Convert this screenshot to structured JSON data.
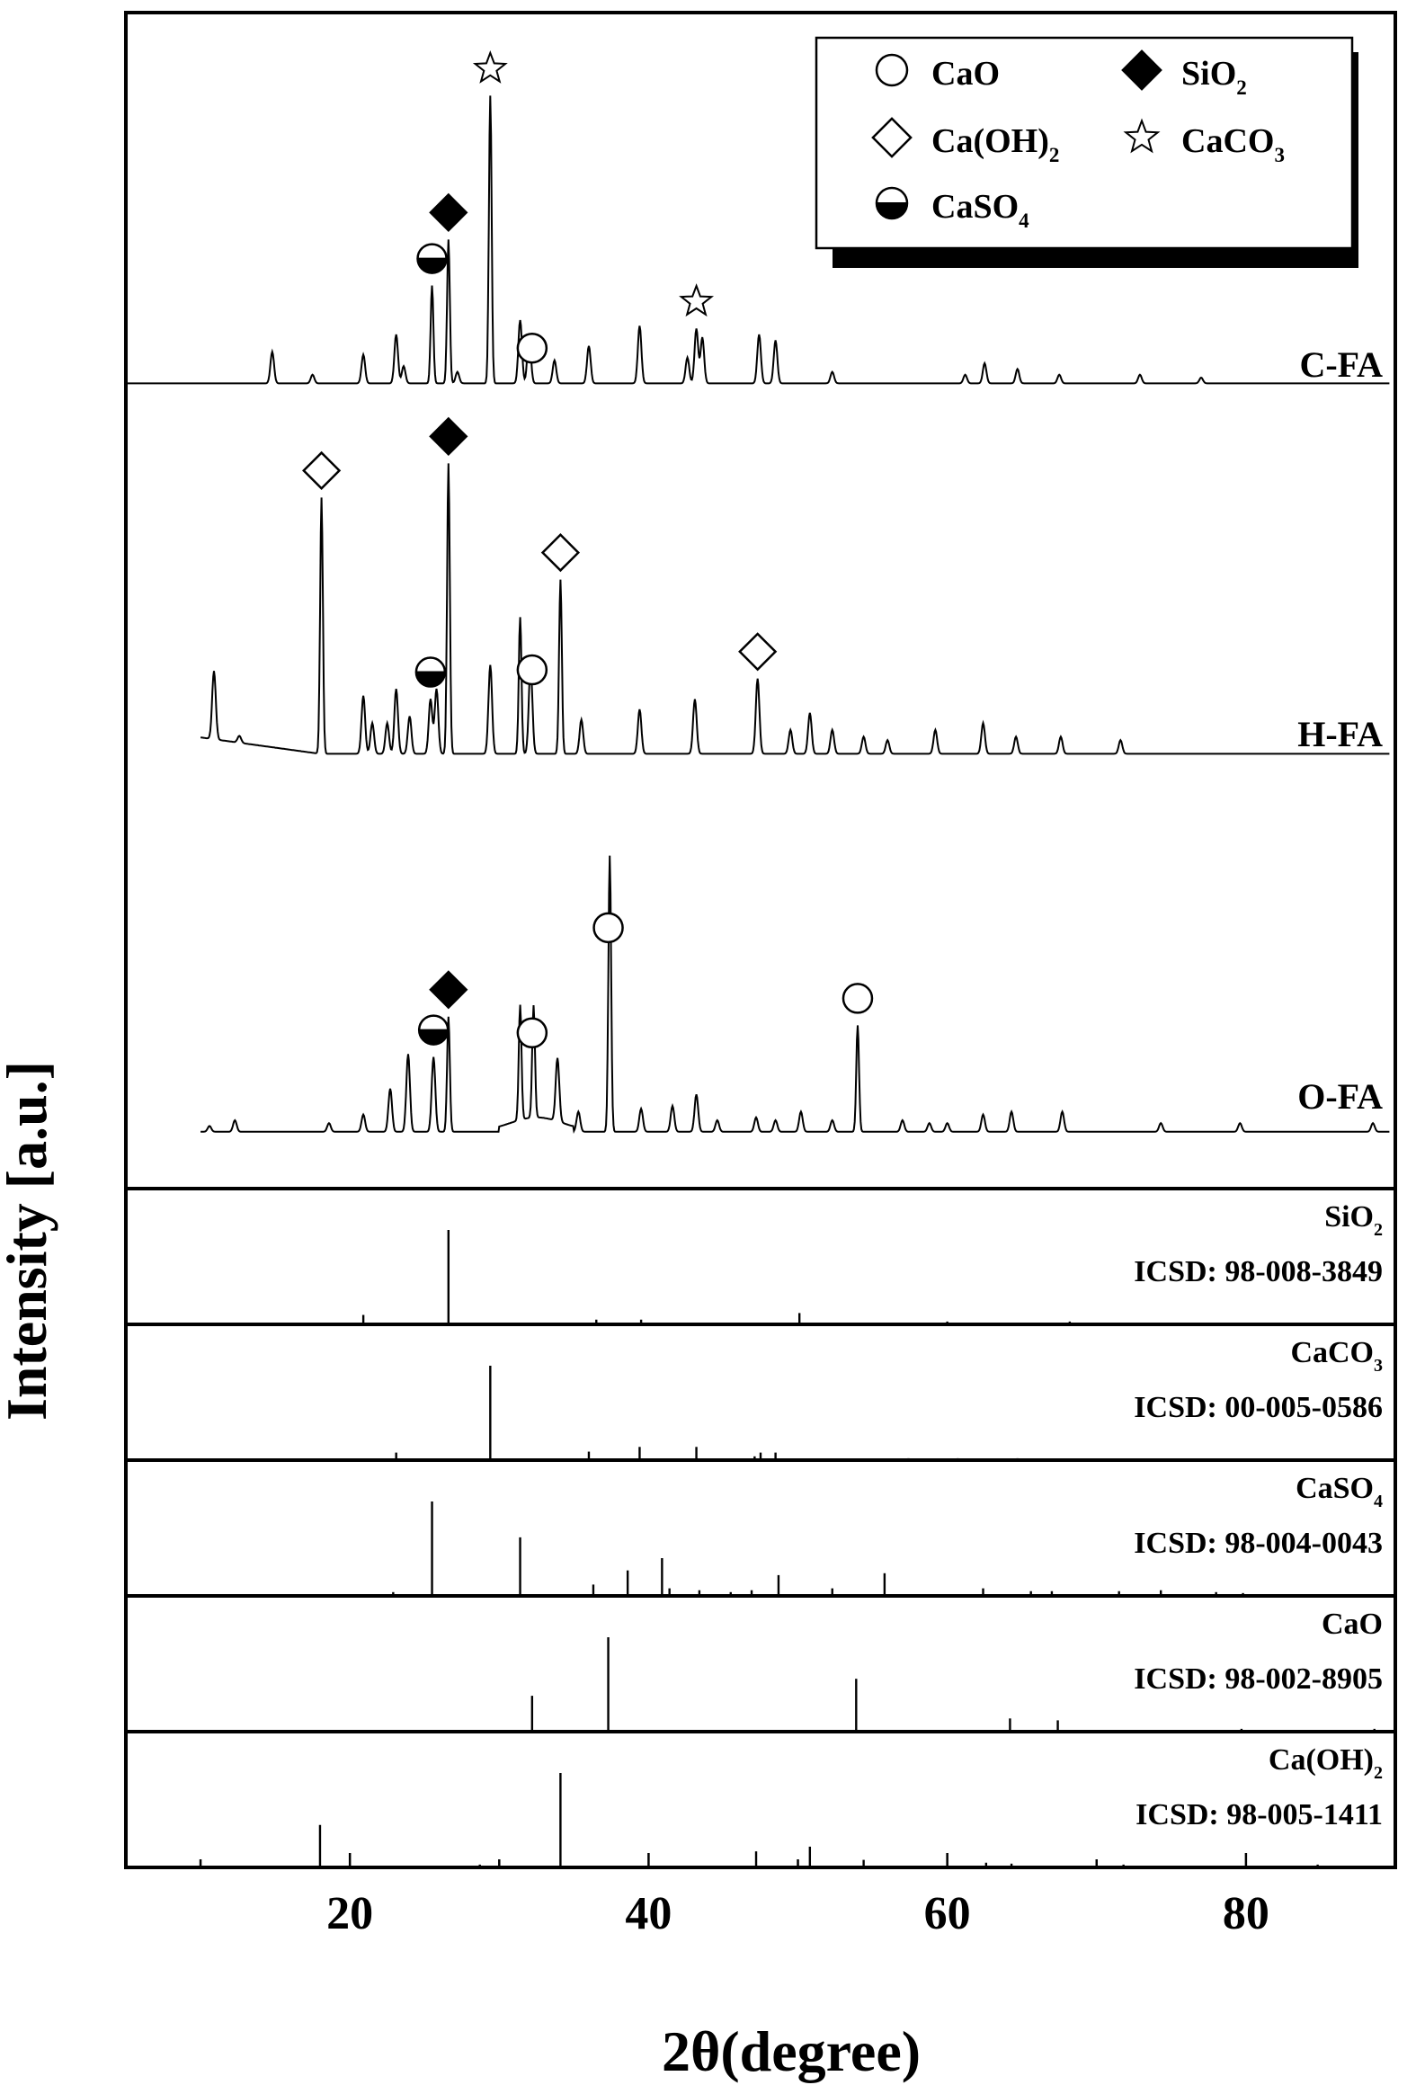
{
  "chart_data": {
    "type": "line",
    "xlabel": "2θ(degree)",
    "ylabel": "Intensity [a.u.]",
    "xlim": [
      5,
      90
    ],
    "x_ticks": [
      "20",
      "40",
      "60",
      "80"
    ],
    "x_tick_values": [
      20,
      40,
      60,
      80
    ],
    "legend": {
      "placement": "top-right",
      "entries": [
        {
          "symbol": "circle",
          "label": "CaO"
        },
        {
          "symbol": "filled-diamond",
          "label": "SiO2"
        },
        {
          "symbol": "diamond",
          "label": "Ca(OH)2"
        },
        {
          "symbol": "star",
          "label": "CaCO3"
        },
        {
          "symbol": "half-circle",
          "label": "CaSO4"
        }
      ]
    },
    "series": [
      {
        "name": "C-FA",
        "baseline": 0.03,
        "peaks": [
          [
            14.8,
            0.11
          ],
          [
            17.5,
            0.03
          ],
          [
            20.9,
            0.1
          ],
          [
            23.1,
            0.17
          ],
          [
            23.6,
            0.06
          ],
          [
            25.5,
            0.34
          ],
          [
            26.6,
            0.5
          ],
          [
            27.2,
            0.04
          ],
          [
            29.4,
            1.0
          ],
          [
            31.4,
            0.22
          ],
          [
            32.0,
            0.17
          ],
          [
            33.7,
            0.08
          ],
          [
            36.0,
            0.13
          ],
          [
            39.4,
            0.2
          ],
          [
            42.6,
            0.09
          ],
          [
            43.2,
            0.19
          ],
          [
            43.6,
            0.16
          ],
          [
            47.4,
            0.17
          ],
          [
            48.5,
            0.15
          ],
          [
            52.3,
            0.04
          ],
          [
            61.2,
            0.03
          ],
          [
            62.5,
            0.07
          ],
          [
            64.7,
            0.05
          ],
          [
            77.0,
            0.02
          ],
          [
            72.9,
            0.03
          ],
          [
            67.5,
            0.03
          ]
        ],
        "markers": [
          {
            "symbol": "star",
            "x": 29.4
          },
          {
            "symbol": "filled-diamond",
            "x": 26.6
          },
          {
            "symbol": "half-circle",
            "x": 25.5
          },
          {
            "symbol": "circle",
            "x": 32.2
          },
          {
            "symbol": "star",
            "x": 43.2
          }
        ]
      },
      {
        "name": "H-FA",
        "baseline": 0.02,
        "peaks": [
          [
            10.9,
            0.2
          ],
          [
            12.6,
            0.02
          ],
          [
            18.1,
            0.75
          ],
          [
            20.9,
            0.17
          ],
          [
            21.5,
            0.09
          ],
          [
            22.5,
            0.09
          ],
          [
            23.1,
            0.19
          ],
          [
            24.0,
            0.11
          ],
          [
            25.4,
            0.16
          ],
          [
            25.8,
            0.19
          ],
          [
            26.6,
            0.85
          ],
          [
            29.4,
            0.26
          ],
          [
            31.4,
            0.4
          ],
          [
            32.1,
            0.26
          ],
          [
            34.1,
            0.51
          ],
          [
            35.5,
            0.1
          ],
          [
            39.4,
            0.13
          ],
          [
            43.1,
            0.16
          ],
          [
            47.3,
            0.22
          ],
          [
            49.5,
            0.07
          ],
          [
            50.8,
            0.12
          ],
          [
            52.3,
            0.07
          ],
          [
            54.4,
            0.05
          ],
          [
            56.0,
            0.04
          ],
          [
            59.2,
            0.07
          ],
          [
            62.4,
            0.09
          ],
          [
            64.6,
            0.05
          ],
          [
            67.6,
            0.05
          ],
          [
            71.6,
            0.04
          ]
        ],
        "markers": [
          {
            "symbol": "diamond",
            "x": 18.1
          },
          {
            "symbol": "filled-diamond",
            "x": 26.6
          },
          {
            "symbol": "diamond",
            "x": 34.1
          },
          {
            "symbol": "circle",
            "x": 32.2
          },
          {
            "symbol": "half-circle",
            "x": 25.4
          },
          {
            "symbol": "diamond",
            "x": 47.3
          }
        ]
      },
      {
        "name": "O-FA",
        "baseline": 0.01,
        "peaks": [
          [
            10.6,
            0.02
          ],
          [
            12.3,
            0.04
          ],
          [
            18.6,
            0.03
          ],
          [
            20.9,
            0.06
          ],
          [
            22.7,
            0.15
          ],
          [
            23.9,
            0.27
          ],
          [
            25.6,
            0.26
          ],
          [
            26.6,
            0.4
          ],
          [
            31.4,
            0.4
          ],
          [
            32.3,
            0.39
          ],
          [
            33.9,
            0.22
          ],
          [
            35.3,
            0.07
          ],
          [
            37.4,
            0.96
          ],
          [
            39.5,
            0.08
          ],
          [
            41.6,
            0.09
          ],
          [
            43.2,
            0.13
          ],
          [
            44.6,
            0.04
          ],
          [
            47.2,
            0.05
          ],
          [
            48.5,
            0.04
          ],
          [
            50.2,
            0.07
          ],
          [
            52.3,
            0.04
          ],
          [
            54.0,
            0.37
          ],
          [
            57.0,
            0.04
          ],
          [
            58.8,
            0.03
          ],
          [
            60.0,
            0.03
          ],
          [
            62.4,
            0.06
          ],
          [
            64.3,
            0.07
          ],
          [
            67.7,
            0.07
          ],
          [
            74.3,
            0.03
          ],
          [
            79.6,
            0.03
          ],
          [
            88.5,
            0.03
          ]
        ],
        "markers": [
          {
            "symbol": "filled-diamond",
            "x": 26.6
          },
          {
            "symbol": "half-circle",
            "x": 25.6
          },
          {
            "symbol": "circle",
            "x": 32.2
          },
          {
            "symbol": "circle",
            "x": 37.3
          },
          {
            "symbol": "circle",
            "x": 54.0
          }
        ]
      }
    ],
    "reference_patterns": [
      {
        "name": "SiO2",
        "label": "ICSD: 98-008-3849",
        "sticks": [
          [
            20.9,
            0.1
          ],
          [
            26.6,
            1.0
          ],
          [
            36.5,
            0.05
          ],
          [
            39.5,
            0.05
          ],
          [
            50.1,
            0.12
          ],
          [
            60.0,
            0.03
          ],
          [
            68.2,
            0.03
          ]
        ]
      },
      {
        "name": "CaCO3",
        "label": "ICSD: 00-005-0586",
        "sticks": [
          [
            23.1,
            0.08
          ],
          [
            29.4,
            1.0
          ],
          [
            36.0,
            0.09
          ],
          [
            39.4,
            0.14
          ],
          [
            43.2,
            0.14
          ],
          [
            47.1,
            0.04
          ],
          [
            47.5,
            0.08
          ],
          [
            48.5,
            0.08
          ],
          [
            57.4,
            0.02
          ],
          [
            60.7,
            0.02
          ],
          [
            64.7,
            0.02
          ]
        ]
      },
      {
        "name": "CaSO4",
        "label": "ICSD: 98-004-0043",
        "sticks": [
          [
            22.9,
            0.04
          ],
          [
            25.5,
            1.0
          ],
          [
            31.4,
            0.62
          ],
          [
            36.3,
            0.12
          ],
          [
            38.6,
            0.27
          ],
          [
            40.9,
            0.4
          ],
          [
            41.4,
            0.08
          ],
          [
            43.4,
            0.06
          ],
          [
            45.5,
            0.04
          ],
          [
            46.9,
            0.06
          ],
          [
            48.7,
            0.22
          ],
          [
            52.3,
            0.08
          ],
          [
            55.8,
            0.24
          ],
          [
            62.4,
            0.08
          ],
          [
            65.6,
            0.05
          ],
          [
            67.0,
            0.05
          ],
          [
            71.5,
            0.05
          ],
          [
            74.3,
            0.06
          ],
          [
            78.0,
            0.04
          ],
          [
            79.8,
            0.03
          ]
        ]
      },
      {
        "name": "CaO",
        "label": "ICSD: 98-002-8905",
        "sticks": [
          [
            32.2,
            0.38
          ],
          [
            37.3,
            1.0
          ],
          [
            53.9,
            0.56
          ],
          [
            64.2,
            0.14
          ],
          [
            67.4,
            0.12
          ],
          [
            79.7,
            0.03
          ],
          [
            88.6,
            0.03
          ]
        ]
      },
      {
        "name": "Ca(OH)2",
        "label": "ICSD: 98-005-1411",
        "sticks": [
          [
            18.0,
            0.45
          ],
          [
            28.7,
            0.03
          ],
          [
            34.1,
            1.0
          ],
          [
            47.2,
            0.17
          ],
          [
            50.8,
            0.22
          ],
          [
            54.4,
            0.08
          ],
          [
            62.6,
            0.05
          ],
          [
            64.3,
            0.04
          ],
          [
            71.8,
            0.03
          ],
          [
            84.8,
            0.03
          ]
        ]
      }
    ]
  }
}
